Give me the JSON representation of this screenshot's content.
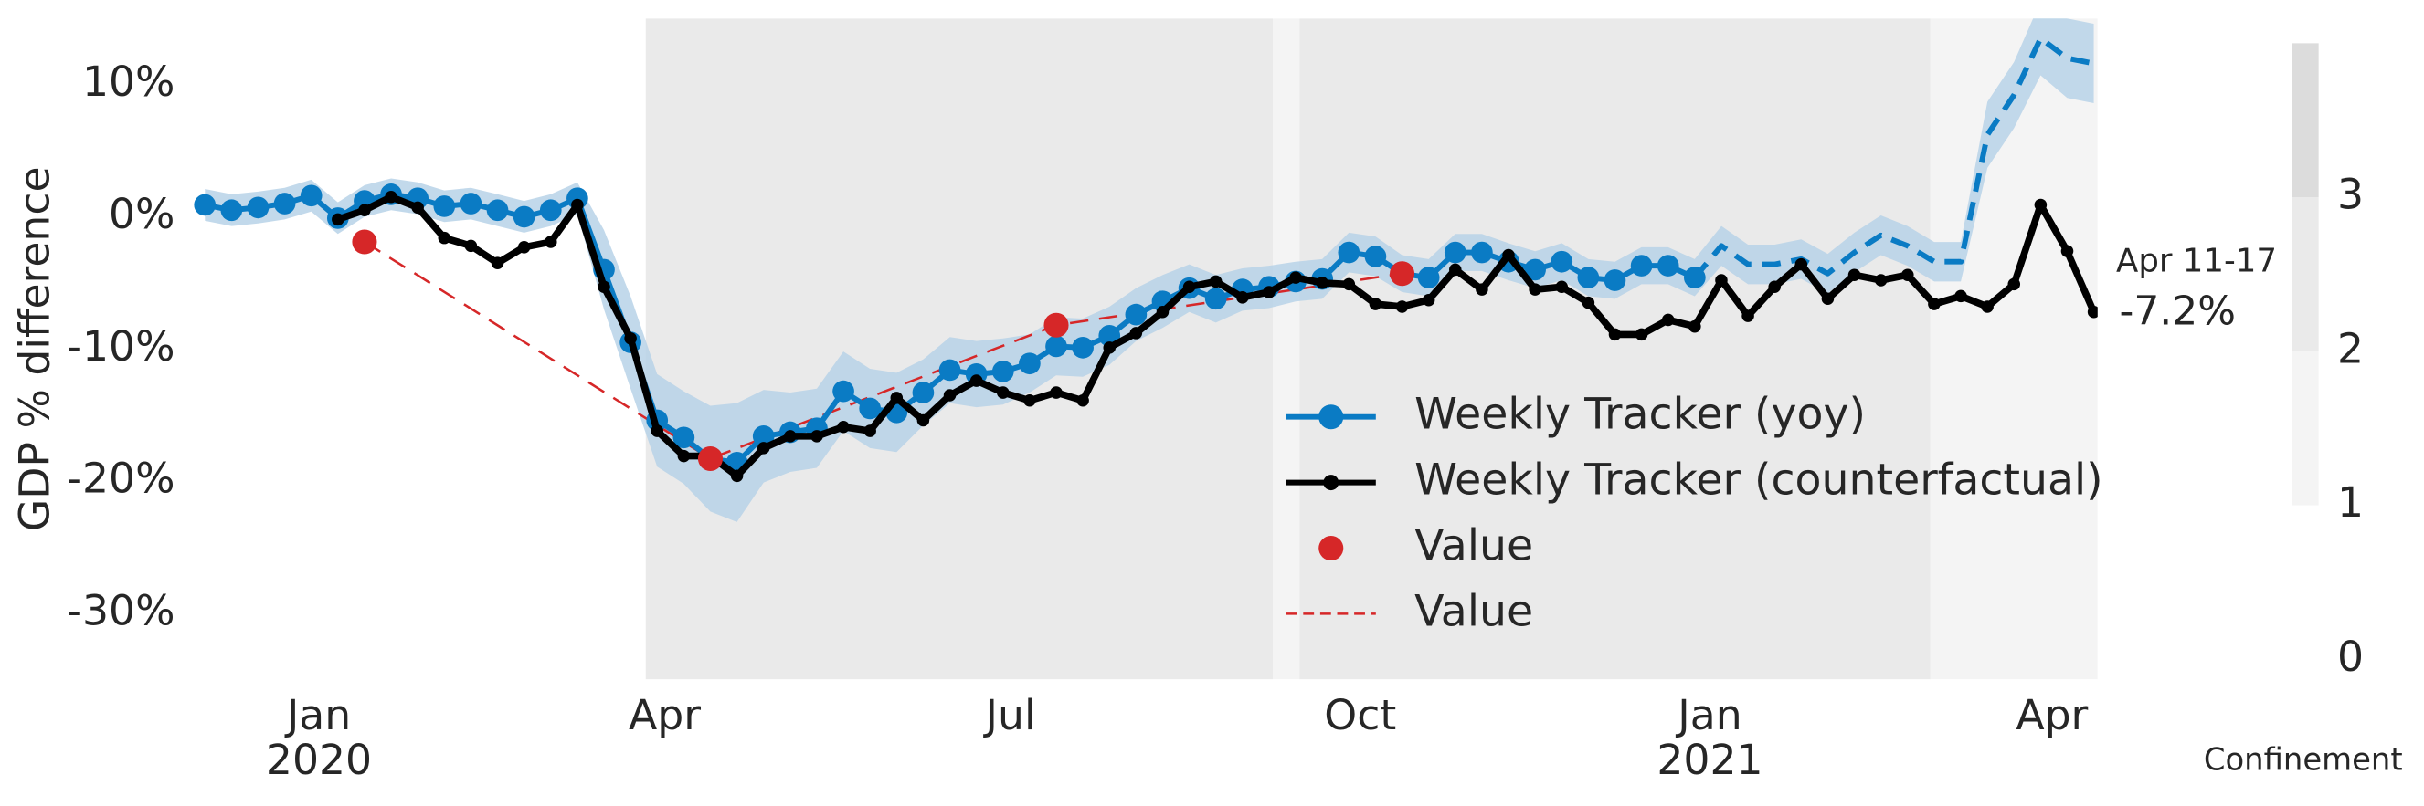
{
  "chart_data": {
    "type": "line",
    "ylabel": "GDP % difference",
    "xlim": [
      "2019-11-29",
      "2021-04-13"
    ],
    "ylim": [
      -35,
      15
    ],
    "yticks": [
      {
        "value": 10,
        "label": "10%"
      },
      {
        "value": 0,
        "label": "0%"
      },
      {
        "value": -10,
        "label": "-10%"
      },
      {
        "value": -20,
        "label": "-20%"
      },
      {
        "value": -30,
        "label": "-30%"
      }
    ],
    "xticks": [
      {
        "value": "2020-01-01",
        "label": "Jan"
      },
      {
        "value": "2020-04-01",
        "label": "Apr"
      },
      {
        "value": "2020-07-01",
        "label": "Jul"
      },
      {
        "value": "2020-10-01",
        "label": "Oct"
      },
      {
        "value": "2021-01-01",
        "label": "Jan"
      },
      {
        "value": "2021-04-01",
        "label": "Apr"
      }
    ],
    "year_labels": [
      {
        "value": "2020-01-01",
        "label": "2020"
      },
      {
        "value": "2021-01-01",
        "label": "2021"
      }
    ],
    "grid": false,
    "legend": "lower center",
    "annotations": [
      "Apr 11-17",
      "-7.2%"
    ],
    "regions": [
      {
        "start": "2020-03-27",
        "end": "2020-09-08",
        "level": 2
      },
      {
        "start": "2020-09-08",
        "end": "2020-09-15",
        "level": 1
      },
      {
        "start": "2020-09-15",
        "end": "2021-02-28",
        "level": 2
      },
      {
        "start": "2021-02-28",
        "end": "2021-04-13",
        "level": 1
      }
    ],
    "colorbar": {
      "label": "Confinement",
      "lim": [
        0,
        4
      ],
      "ticks": [
        0,
        1,
        2,
        3
      ],
      "bounds": [
        1,
        2,
        3,
        4
      ],
      "colors": [
        "#f4f4f4",
        "#eaeaea",
        "#dcdcdc"
      ]
    },
    "series": [
      {
        "name": "Weekly Tracker (yoy)",
        "color": "#0a7bc4",
        "marker": "o",
        "linestyle": "solid",
        "x": [
          "2019-12-02",
          "2019-12-09",
          "2019-12-16",
          "2019-12-23",
          "2019-12-30",
          "2020-01-06",
          "2020-01-13",
          "2020-01-20",
          "2020-01-27",
          "2020-02-03",
          "2020-02-10",
          "2020-02-17",
          "2020-02-24",
          "2020-03-02",
          "2020-03-09",
          "2020-03-16",
          "2020-03-23",
          "2020-03-30",
          "2020-04-06",
          "2020-04-13",
          "2020-04-20",
          "2020-04-27",
          "2020-05-04",
          "2020-05-11",
          "2020-05-18",
          "2020-05-25",
          "2020-06-01",
          "2020-06-08",
          "2020-06-15",
          "2020-06-22",
          "2020-06-29",
          "2020-07-06",
          "2020-07-13",
          "2020-07-20",
          "2020-07-27",
          "2020-08-03",
          "2020-08-10",
          "2020-08-17",
          "2020-08-24",
          "2020-08-31",
          "2020-09-07",
          "2020-09-14",
          "2020-09-21",
          "2020-09-28",
          "2020-10-05",
          "2020-10-12",
          "2020-10-19",
          "2020-10-26",
          "2020-11-02",
          "2020-11-09",
          "2020-11-16",
          "2020-11-23",
          "2020-11-30",
          "2020-12-07",
          "2020-12-14",
          "2020-12-21",
          "2020-12-28"
        ],
        "values": [
          0.9,
          0.5,
          0.7,
          1.0,
          1.6,
          -0.1,
          1.2,
          1.7,
          1.4,
          0.8,
          1.0,
          0.5,
          0.0,
          0.5,
          1.4,
          -4.0,
          -9.5,
          -15.4,
          -16.7,
          -18.3,
          -18.6,
          -16.6,
          -16.3,
          -16.0,
          -13.2,
          -14.5,
          -14.8,
          -13.3,
          -11.6,
          -11.9,
          -11.7,
          -11.1,
          -9.8,
          -9.9,
          -9.0,
          -7.4,
          -6.4,
          -5.4,
          -6.2,
          -5.5,
          -5.3,
          -4.9,
          -4.7,
          -2.7,
          -3.0,
          -4.3,
          -4.6,
          -2.7,
          -2.7,
          -3.4,
          -4.0,
          -3.4,
          -4.6,
          -4.8,
          -3.7,
          -3.7,
          -4.6
        ],
        "nowcast": {
          "linestyle": "dashed",
          "x": [
            "2020-12-28",
            "2021-01-04",
            "2021-01-11",
            "2021-01-18",
            "2021-01-25",
            "2021-02-01",
            "2021-02-08",
            "2021-02-15",
            "2021-02-22",
            "2021-03-01",
            "2021-03-08",
            "2021-03-15",
            "2021-03-22",
            "2021-03-29",
            "2021-04-05",
            "2021-04-12"
          ],
          "values": [
            -4.6,
            -2.2,
            -3.6,
            -3.6,
            -3.2,
            -4.3,
            -2.7,
            -1.4,
            -2.2,
            -3.4,
            -3.4,
            6.2,
            9.2,
            13.5,
            12.0,
            11.6
          ]
        },
        "band": {
          "color": "#b7d2e8",
          "x": [
            "2019-12-02",
            "2019-12-09",
            "2019-12-16",
            "2019-12-23",
            "2019-12-30",
            "2020-01-06",
            "2020-01-13",
            "2020-01-20",
            "2020-01-27",
            "2020-02-03",
            "2020-02-10",
            "2020-02-17",
            "2020-02-24",
            "2020-03-02",
            "2020-03-09",
            "2020-03-16",
            "2020-03-23",
            "2020-03-30",
            "2020-04-06",
            "2020-04-13",
            "2020-04-20",
            "2020-04-27",
            "2020-05-04",
            "2020-05-11",
            "2020-05-18",
            "2020-05-25",
            "2020-06-01",
            "2020-06-08",
            "2020-06-15",
            "2020-06-22",
            "2020-06-29",
            "2020-07-06",
            "2020-07-13",
            "2020-07-20",
            "2020-07-27",
            "2020-08-03",
            "2020-08-10",
            "2020-08-17",
            "2020-08-24",
            "2020-08-31",
            "2020-09-07",
            "2020-09-14",
            "2020-09-21",
            "2020-09-28",
            "2020-10-05",
            "2020-10-12",
            "2020-10-19",
            "2020-10-26",
            "2020-11-02",
            "2020-11-09",
            "2020-11-16",
            "2020-11-23",
            "2020-11-30",
            "2020-12-07",
            "2020-12-14",
            "2020-12-21",
            "2020-12-28",
            "2021-01-04",
            "2021-01-11",
            "2021-01-18",
            "2021-01-25",
            "2021-02-01",
            "2021-02-08",
            "2021-02-15",
            "2021-02-22",
            "2021-03-01",
            "2021-03-08",
            "2021-03-15",
            "2021-03-22",
            "2021-03-29",
            "2021-04-05",
            "2021-04-12"
          ],
          "lower": [
            -0.3,
            -0.7,
            -0.5,
            -0.2,
            0.4,
            -1.3,
            0.0,
            0.5,
            0.2,
            -0.4,
            -0.2,
            -0.7,
            -1.2,
            -0.7,
            0.2,
            -7.0,
            -13.0,
            -18.9,
            -20.2,
            -22.3,
            -23.1,
            -20.1,
            -19.3,
            -19.0,
            -16.2,
            -17.5,
            -17.8,
            -15.8,
            -14.1,
            -14.4,
            -14.2,
            -13.3,
            -12.0,
            -12.1,
            -11.2,
            -9.4,
            -8.4,
            -7.2,
            -8.0,
            -7.1,
            -6.9,
            -6.4,
            -6.2,
            -4.2,
            -4.5,
            -5.7,
            -6.0,
            -4.1,
            -4.1,
            -4.8,
            -5.4,
            -4.8,
            -6.0,
            -6.2,
            -5.1,
            -5.1,
            -6.0,
            -3.7,
            -5.1,
            -5.1,
            -4.7,
            -5.8,
            -4.2,
            -2.9,
            -3.7,
            -4.9,
            -4.9,
            3.7,
            6.7,
            10.7,
            9.0,
            8.6
          ],
          "upper": [
            2.1,
            1.7,
            1.9,
            2.2,
            2.8,
            1.1,
            2.4,
            2.9,
            2.6,
            2.0,
            2.2,
            1.7,
            1.2,
            1.7,
            2.6,
            -1.0,
            -6.0,
            -11.9,
            -13.2,
            -14.3,
            -14.1,
            -13.1,
            -13.3,
            -13.0,
            -10.2,
            -11.5,
            -11.8,
            -10.8,
            -9.1,
            -9.4,
            -9.2,
            -8.9,
            -7.6,
            -7.7,
            -6.8,
            -5.4,
            -4.4,
            -3.6,
            -4.4,
            -3.9,
            -3.7,
            -3.4,
            -3.2,
            -1.2,
            -1.5,
            -2.9,
            -3.2,
            -1.3,
            -1.3,
            -2.0,
            -2.6,
            -2.0,
            -3.2,
            -3.4,
            -2.3,
            -2.3,
            -3.2,
            -0.7,
            -2.1,
            -2.1,
            -1.7,
            -2.8,
            -1.2,
            0.1,
            -0.7,
            -1.9,
            -1.9,
            8.7,
            11.7,
            16.3,
            15.0,
            14.6
          ]
        }
      },
      {
        "name": "Weekly Tracker (counterfactual)",
        "color": "#000000",
        "marker": "o",
        "linestyle": "solid",
        "x": [
          "2020-01-06",
          "2020-01-13",
          "2020-01-20",
          "2020-01-27",
          "2020-02-03",
          "2020-02-10",
          "2020-02-17",
          "2020-02-24",
          "2020-03-02",
          "2020-03-09",
          "2020-03-16",
          "2020-03-23",
          "2020-03-30",
          "2020-04-06",
          "2020-04-13",
          "2020-04-20",
          "2020-04-27",
          "2020-05-04",
          "2020-05-11",
          "2020-05-18",
          "2020-05-25",
          "2020-06-01",
          "2020-06-08",
          "2020-06-15",
          "2020-06-22",
          "2020-06-29",
          "2020-07-06",
          "2020-07-13",
          "2020-07-20",
          "2020-07-27",
          "2020-08-03",
          "2020-08-10",
          "2020-08-17",
          "2020-08-24",
          "2020-08-31",
          "2020-09-07",
          "2020-09-14",
          "2020-09-21",
          "2020-09-28",
          "2020-10-05",
          "2020-10-12",
          "2020-10-19",
          "2020-10-26",
          "2020-11-02",
          "2020-11-09",
          "2020-11-16",
          "2020-11-23",
          "2020-11-30",
          "2020-12-07",
          "2020-12-14",
          "2020-12-21",
          "2020-12-28",
          "2021-01-04",
          "2021-01-11",
          "2021-01-18",
          "2021-01-25",
          "2021-02-01",
          "2021-02-08",
          "2021-02-15",
          "2021-02-22",
          "2021-03-01",
          "2021-03-08",
          "2021-03-15",
          "2021-03-22",
          "2021-03-29",
          "2021-04-05",
          "2021-04-12"
        ],
        "values": [
          -0.2,
          0.5,
          1.5,
          0.7,
          -1.6,
          -2.2,
          -3.5,
          -2.3,
          -1.9,
          0.9,
          -5.3,
          -9.2,
          -16.2,
          -18.1,
          -18.1,
          -19.6,
          -17.5,
          -16.6,
          -16.6,
          -15.9,
          -16.2,
          -13.7,
          -15.4,
          -13.5,
          -12.4,
          -13.3,
          -13.9,
          -13.3,
          -13.9,
          -9.9,
          -8.8,
          -7.2,
          -5.3,
          -4.9,
          -6.1,
          -5.7,
          -4.6,
          -5.0,
          -5.1,
          -6.6,
          -6.8,
          -6.3,
          -4.0,
          -5.5,
          -2.9,
          -5.5,
          -5.3,
          -6.5,
          -8.9,
          -8.9,
          -7.8,
          -8.3,
          -4.8,
          -7.5,
          -5.3,
          -3.6,
          -6.2,
          -4.4,
          -4.8,
          -4.4,
          -6.6,
          -6.0,
          -6.8,
          -5.1,
          0.9,
          -2.6,
          -7.2
        ]
      },
      {
        "name": "Value",
        "color": "#d62728",
        "marker": "o",
        "linestyle": "none",
        "x": [
          "2020-01-13",
          "2020-04-13",
          "2020-07-13",
          "2020-10-12"
        ],
        "values": [
          -1.9,
          -18.3,
          -8.2,
          -4.3
        ]
      },
      {
        "name": "Value",
        "color": "#d62728",
        "marker": "none",
        "linestyle": "dashed",
        "x": [
          "2020-01-13",
          "2020-04-13",
          "2020-07-13",
          "2020-10-12"
        ],
        "values": [
          -1.9,
          -18.3,
          -8.2,
          -4.3
        ]
      }
    ]
  }
}
